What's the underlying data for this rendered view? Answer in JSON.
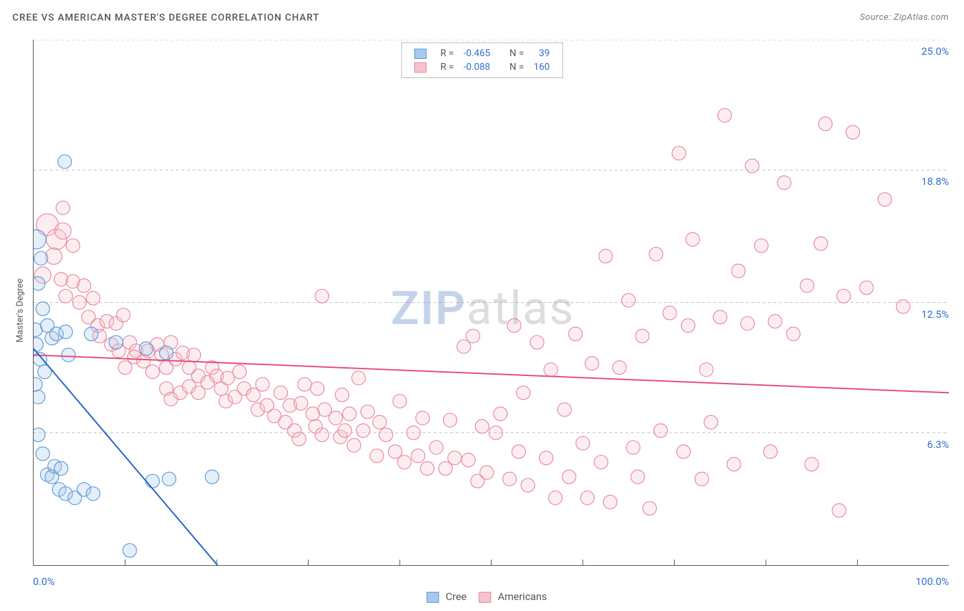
{
  "chart": {
    "type": "scatter",
    "title": "CREE VS AMERICAN MASTER'S DEGREE CORRELATION CHART",
    "title_fontsize": 14,
    "title_color": "#555555",
    "source_text": "Source: ZipAtlas.com",
    "source_color": "#7a7a7a",
    "source_fontsize": 13,
    "ylabel": "Master's Degree",
    "ylabel_fontsize": 13,
    "ylabel_color": "#555555",
    "xlim": [
      0,
      100
    ],
    "ylim": [
      0,
      25
    ],
    "x_tick_positions": [
      10,
      20,
      30,
      40,
      50,
      60,
      70,
      80,
      90
    ],
    "x_tick_labels_shown": {
      "0": "0.0%",
      "100": "100.0%"
    },
    "y_tick_positions": [
      6.3,
      12.5,
      18.8,
      25.0
    ],
    "y_tick_labels": [
      "6.3%",
      "12.5%",
      "18.8%",
      "25.0%"
    ],
    "tick_label_color": "#2f6fd0",
    "tick_label_fontsize": 15,
    "grid_color": "#bdbdbd",
    "background_color": "#ffffff",
    "axis_line_color": "#555555",
    "marker_radius": 10,
    "marker_stroke_width": 1.2,
    "marker_fill_opacity": 0.3,
    "watermark": {
      "zip": "ZIP",
      "atlas": "atlas",
      "zip_color": "rgba(100,140,200,0.38)",
      "atlas_color": "rgba(150,150,150,0.32)",
      "fontsize": 68
    },
    "series": {
      "cree": {
        "label": "Cree",
        "color_fill": "#a8c9ec",
        "color_stroke": "#5d9ad8",
        "trend_color": "#1f62c9",
        "trend_width": 2,
        "trend_y_at_x0": 10.3,
        "trend_y_at_x100": -41.0,
        "R": "-0.465",
        "N": "39",
        "points": [
          [
            0.3,
            15.5,
            14
          ],
          [
            0.8,
            14.6,
            10
          ],
          [
            0.5,
            13.4,
            10
          ],
          [
            1.0,
            12.2,
            10
          ],
          [
            0.3,
            10.5,
            10
          ],
          [
            0.2,
            11.2,
            10
          ],
          [
            0.7,
            9.8,
            10
          ],
          [
            1.2,
            9.2,
            10
          ],
          [
            0.2,
            8.6,
            10
          ],
          [
            0.5,
            8.0,
            10
          ],
          [
            1.5,
            11.4,
            10
          ],
          [
            2.0,
            10.8,
            10
          ],
          [
            2.5,
            11.0,
            10
          ],
          [
            3.5,
            11.1,
            10
          ],
          [
            3.8,
            10.0,
            10
          ],
          [
            0.5,
            6.2,
            10
          ],
          [
            1.0,
            5.3,
            10
          ],
          [
            1.5,
            4.3,
            10
          ],
          [
            2.0,
            4.2,
            10
          ],
          [
            2.3,
            4.7,
            10
          ],
          [
            3.0,
            4.6,
            10
          ],
          [
            2.8,
            3.6,
            10
          ],
          [
            3.5,
            3.4,
            10
          ],
          [
            4.5,
            3.2,
            10
          ],
          [
            5.5,
            3.6,
            10
          ],
          [
            6.5,
            3.4,
            10
          ],
          [
            3.4,
            19.2,
            10
          ],
          [
            6.3,
            11.0,
            10
          ],
          [
            9.0,
            10.6,
            10
          ],
          [
            12.3,
            10.3,
            10
          ],
          [
            14.5,
            10.1,
            10
          ],
          [
            13.0,
            4.0,
            10
          ],
          [
            14.8,
            4.1,
            10
          ],
          [
            19.5,
            4.2,
            10
          ],
          [
            10.5,
            0.7,
            10
          ]
        ]
      },
      "americans": {
        "label": "Americans",
        "color_fill": "#f5c2ce",
        "color_stroke": "#e98aa2",
        "trend_color": "#e74a7a",
        "trend_width": 2,
        "trend_y_at_x0": 10.0,
        "trend_y_at_x100": 8.2,
        "R": "-0.088",
        "N": "160",
        "points": [
          [
            1.5,
            16.2,
            16
          ],
          [
            2.5,
            15.5,
            15
          ],
          [
            3.2,
            15.9,
            12
          ],
          [
            2.2,
            14.7,
            12
          ],
          [
            3.2,
            17.0,
            10
          ],
          [
            4.3,
            15.2,
            10
          ],
          [
            1.0,
            13.8,
            12
          ],
          [
            3.0,
            13.6,
            10
          ],
          [
            4.3,
            13.5,
            10
          ],
          [
            3.5,
            12.8,
            10
          ],
          [
            5.5,
            13.3,
            10
          ],
          [
            5.0,
            12.5,
            10
          ],
          [
            6.5,
            12.7,
            10
          ],
          [
            6.0,
            11.8,
            10
          ],
          [
            7.0,
            11.4,
            10
          ],
          [
            8.0,
            11.6,
            10
          ],
          [
            7.2,
            10.9,
            10
          ],
          [
            8.5,
            10.5,
            10
          ],
          [
            9.3,
            10.2,
            10
          ],
          [
            9.0,
            11.5,
            10
          ],
          [
            9.8,
            11.9,
            10
          ],
          [
            10.5,
            10.6,
            10
          ],
          [
            11.2,
            10.2,
            10
          ],
          [
            10.0,
            9.4,
            10
          ],
          [
            11.0,
            9.9,
            10
          ],
          [
            12.0,
            9.7,
            10
          ],
          [
            12.5,
            10.2,
            10
          ],
          [
            13.0,
            9.2,
            10
          ],
          [
            13.5,
            10.5,
            10
          ],
          [
            14.0,
            10.0,
            10
          ],
          [
            14.5,
            9.4,
            10
          ],
          [
            15.0,
            10.6,
            10
          ],
          [
            15.5,
            9.8,
            10
          ],
          [
            16.3,
            10.1,
            10
          ],
          [
            17.0,
            9.4,
            10
          ],
          [
            17.5,
            10.0,
            10
          ],
          [
            18.0,
            9.0,
            10
          ],
          [
            14.5,
            8.4,
            10
          ],
          [
            15.0,
            7.9,
            10
          ],
          [
            16.0,
            8.2,
            10
          ],
          [
            17.0,
            8.5,
            10
          ],
          [
            18.0,
            8.2,
            10
          ],
          [
            19.0,
            8.7,
            10
          ],
          [
            19.5,
            9.4,
            10
          ],
          [
            20.0,
            9.0,
            10
          ],
          [
            20.5,
            8.4,
            10
          ],
          [
            21.2,
            8.9,
            10
          ],
          [
            21.0,
            7.8,
            10
          ],
          [
            22.0,
            8.0,
            10
          ],
          [
            22.5,
            9.2,
            10
          ],
          [
            23.0,
            8.4,
            10
          ],
          [
            24.0,
            8.1,
            10
          ],
          [
            24.5,
            7.4,
            10
          ],
          [
            25.0,
            8.6,
            10
          ],
          [
            25.5,
            7.6,
            10
          ],
          [
            26.3,
            7.1,
            10
          ],
          [
            27.0,
            8.2,
            10
          ],
          [
            27.5,
            6.8,
            10
          ],
          [
            28.0,
            7.6,
            10
          ],
          [
            28.5,
            6.4,
            10
          ],
          [
            29.2,
            7.7,
            10
          ],
          [
            29.0,
            6.0,
            10
          ],
          [
            29.6,
            8.6,
            10
          ],
          [
            30.5,
            7.2,
            10
          ],
          [
            30.8,
            6.6,
            10
          ],
          [
            31.0,
            8.4,
            10
          ],
          [
            31.5,
            6.2,
            10
          ],
          [
            31.8,
            7.4,
            10
          ],
          [
            33.0,
            7.0,
            10
          ],
          [
            33.5,
            6.1,
            10
          ],
          [
            33.7,
            8.1,
            10
          ],
          [
            34.5,
            7.2,
            10
          ],
          [
            34.0,
            6.4,
            10
          ],
          [
            35.0,
            5.7,
            10
          ],
          [
            35.5,
            8.9,
            10
          ],
          [
            36.0,
            6.4,
            10
          ],
          [
            36.5,
            7.3,
            10
          ],
          [
            37.5,
            5.2,
            10
          ],
          [
            37.8,
            6.8,
            10
          ],
          [
            38.5,
            6.2,
            10
          ],
          [
            39.5,
            5.4,
            10
          ],
          [
            40.0,
            7.8,
            10
          ],
          [
            40.5,
            4.9,
            10
          ],
          [
            41.5,
            6.3,
            10
          ],
          [
            42.0,
            5.2,
            10
          ],
          [
            42.5,
            7.0,
            10
          ],
          [
            43.0,
            4.6,
            10
          ],
          [
            44.0,
            5.6,
            10
          ],
          [
            45.0,
            4.6,
            10
          ],
          [
            45.5,
            6.9,
            10
          ],
          [
            46.0,
            5.1,
            10
          ],
          [
            47.0,
            10.4,
            10
          ],
          [
            47.5,
            5.0,
            10
          ],
          [
            48.0,
            10.9,
            10
          ],
          [
            48.5,
            4.0,
            10
          ],
          [
            49.0,
            6.6,
            10
          ],
          [
            49.5,
            4.4,
            10
          ],
          [
            50.5,
            6.3,
            10
          ],
          [
            51.0,
            7.2,
            10
          ],
          [
            52.0,
            4.1,
            10
          ],
          [
            52.5,
            11.4,
            10
          ],
          [
            53.0,
            5.4,
            10
          ],
          [
            53.5,
            8.2,
            10
          ],
          [
            54.0,
            3.8,
            10
          ],
          [
            55.0,
            10.6,
            10
          ],
          [
            56.0,
            5.1,
            10
          ],
          [
            56.5,
            9.3,
            10
          ],
          [
            57.0,
            3.2,
            10
          ],
          [
            58.0,
            7.4,
            10
          ],
          [
            58.5,
            4.2,
            10
          ],
          [
            59.2,
            11.0,
            10
          ],
          [
            60.0,
            5.8,
            10
          ],
          [
            60.5,
            3.2,
            10
          ],
          [
            61.0,
            9.6,
            10
          ],
          [
            62.0,
            4.9,
            10
          ],
          [
            62.5,
            14.7,
            10
          ],
          [
            63.0,
            3.0,
            10
          ],
          [
            64.0,
            9.4,
            10
          ],
          [
            65.0,
            12.6,
            10
          ],
          [
            65.5,
            5.6,
            10
          ],
          [
            66.0,
            4.2,
            10
          ],
          [
            66.5,
            10.9,
            10
          ],
          [
            67.3,
            2.7,
            10
          ],
          [
            68.0,
            14.8,
            10
          ],
          [
            68.5,
            6.4,
            10
          ],
          [
            69.5,
            12.0,
            10
          ],
          [
            70.5,
            19.6,
            10
          ],
          [
            71.0,
            5.4,
            10
          ],
          [
            71.5,
            11.4,
            10
          ],
          [
            72.0,
            15.5,
            10
          ],
          [
            73.0,
            4.1,
            10
          ],
          [
            73.5,
            9.3,
            10
          ],
          [
            74.0,
            6.8,
            10
          ],
          [
            75.0,
            11.8,
            10
          ],
          [
            75.5,
            21.4,
            10
          ],
          [
            76.5,
            4.8,
            10
          ],
          [
            77.0,
            14.0,
            10
          ],
          [
            78.0,
            11.5,
            10
          ],
          [
            78.5,
            19.0,
            10
          ],
          [
            79.5,
            15.2,
            10
          ],
          [
            80.5,
            5.4,
            10
          ],
          [
            81.0,
            11.6,
            10
          ],
          [
            82.0,
            18.2,
            10
          ],
          [
            83.0,
            11.0,
            10
          ],
          [
            31.5,
            12.8,
            10
          ],
          [
            84.5,
            13.3,
            10
          ],
          [
            85.0,
            4.8,
            10
          ],
          [
            86.0,
            15.3,
            10
          ],
          [
            86.5,
            21.0,
            10
          ],
          [
            88.0,
            2.6,
            10
          ],
          [
            88.5,
            12.8,
            10
          ],
          [
            89.5,
            20.6,
            10
          ],
          [
            91.0,
            13.2,
            10
          ],
          [
            93.0,
            17.4,
            10
          ],
          [
            95.0,
            12.3,
            10
          ]
        ]
      }
    },
    "legend_top": {
      "R_label": "R =",
      "N_label": "N =",
      "value_color": "#2f6fd0",
      "text_color": "#555555"
    },
    "legend_bottom": [
      "cree",
      "americans"
    ]
  }
}
